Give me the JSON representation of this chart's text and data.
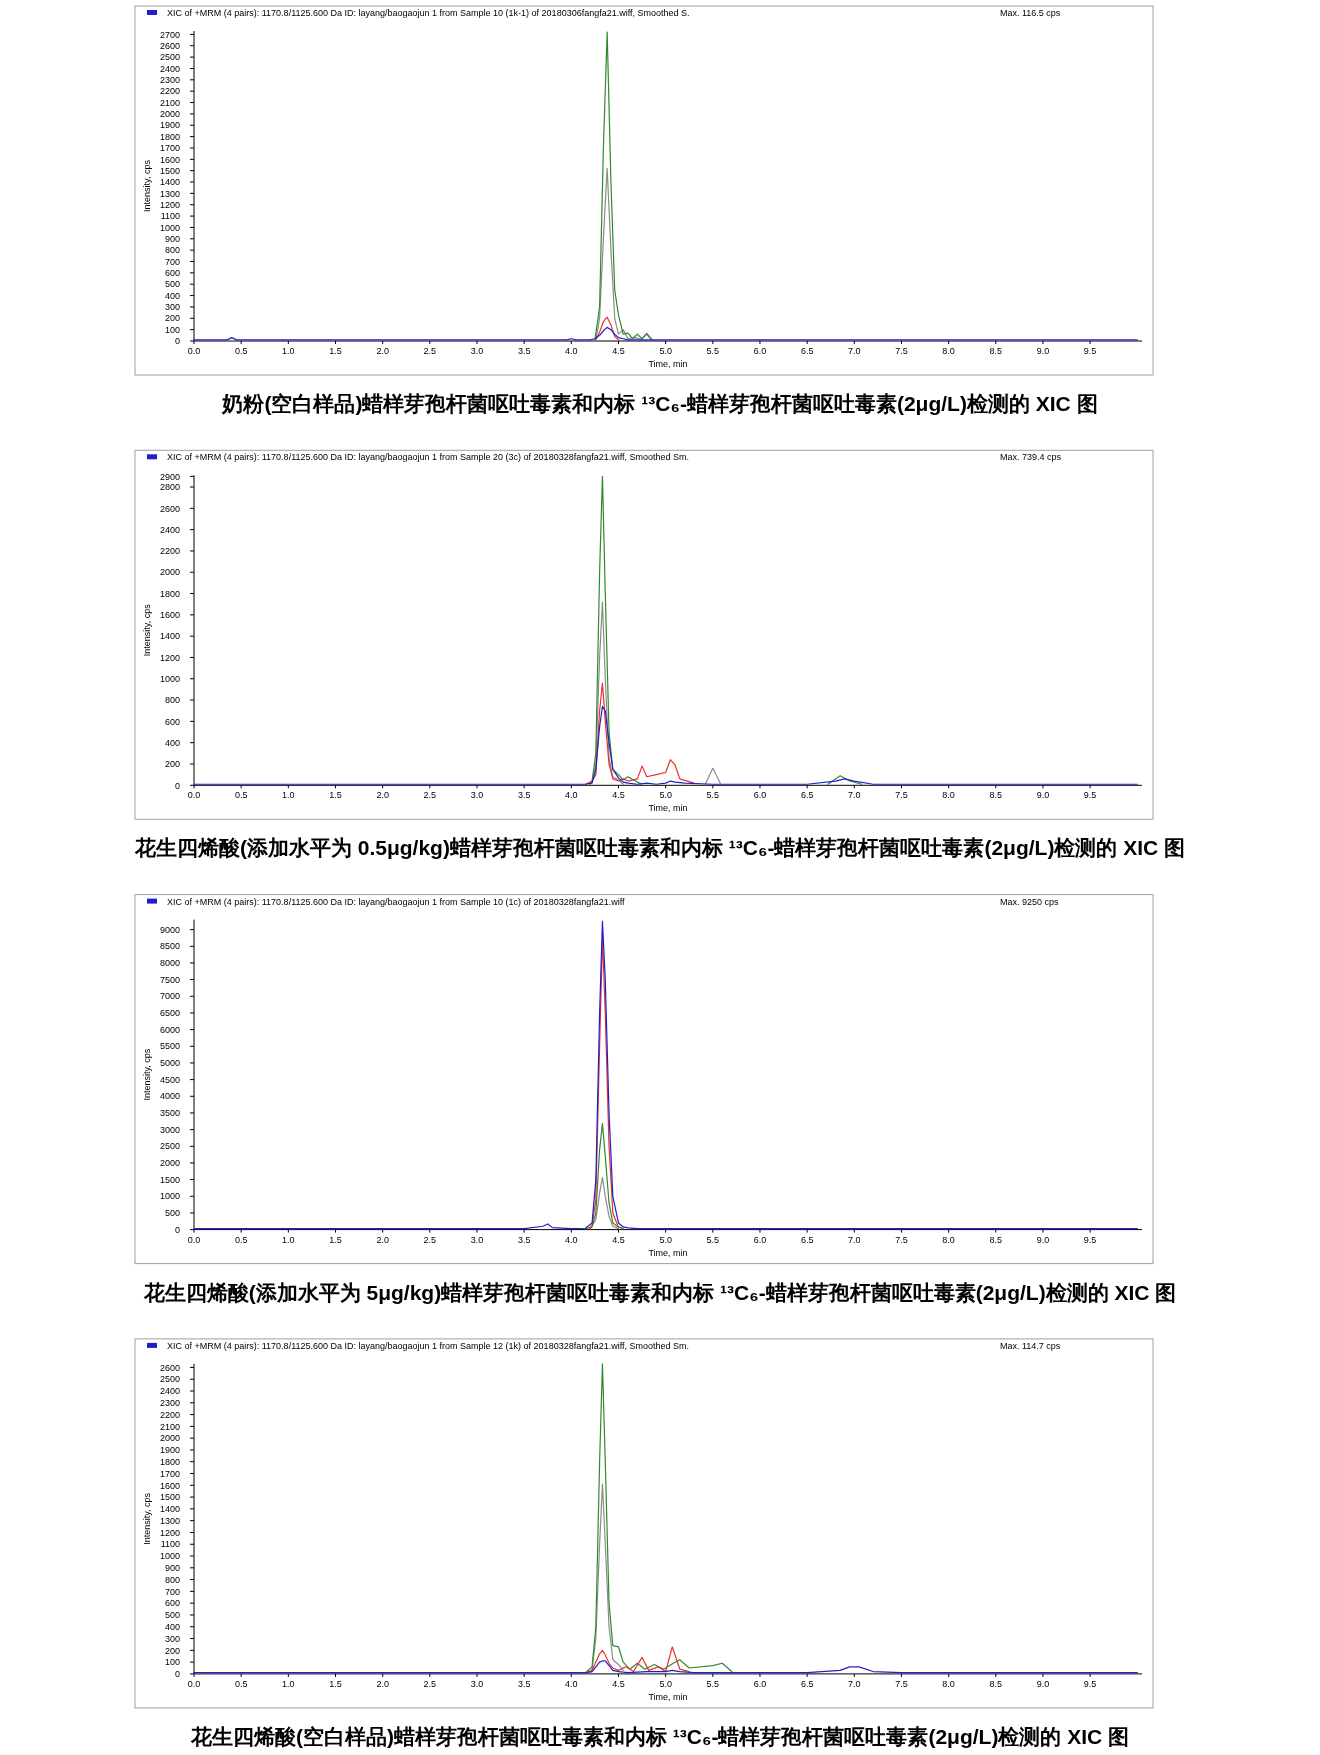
{
  "chart_data": [
    {
      "type": "line",
      "title": "奶粉(空白样品)蜡样芽孢杆菌呕吐毒素和内标 ¹³C₆-蜡样芽孢杆菌呕吐毒素(2μg/L)检测的 XIC 图",
      "xlabel": "Time, min",
      "ylabel": "Intensity, cps",
      "annotations": [
        "Max. 116.5 cps"
      ],
      "legend": "top left",
      "x": [
        0,
        0.2,
        0.35,
        0.4,
        0.45,
        0.6,
        1.0,
        1.5,
        2.0,
        2.5,
        3.0,
        3.5,
        3.95,
        4.0,
        4.05,
        4.2,
        4.25,
        4.3,
        4.34,
        4.38,
        4.42,
        4.46,
        4.5,
        4.55,
        4.6,
        4.7,
        5.0,
        5.5,
        6.0,
        6.5,
        7.0,
        7.5,
        8.0,
        8.5,
        9.0,
        9.5,
        10.0
      ],
      "xlim": [
        0,
        10.05
      ],
      "xticks": [
        {
          "value": 0,
          "label": "0.0"
        },
        {
          "value": 0.5,
          "label": "0.5"
        },
        {
          "value": 1,
          "label": "1.0"
        },
        {
          "value": 1.5,
          "label": "1.5"
        },
        {
          "value": 2,
          "label": "2.0"
        },
        {
          "value": 2.5,
          "label": "2.5"
        },
        {
          "value": 3,
          "label": "3.0"
        },
        {
          "value": 3.5,
          "label": "3.5"
        },
        {
          "value": 4,
          "label": "4.0"
        },
        {
          "value": 4.5,
          "label": "4.5"
        },
        {
          "value": 5,
          "label": "5.0"
        },
        {
          "value": 5.5,
          "label": "5.5"
        },
        {
          "value": 6,
          "label": "6.0"
        },
        {
          "value": 6.5,
          "label": "6.5"
        },
        {
          "value": 7,
          "label": "7.0"
        },
        {
          "value": 7.5,
          "label": "7.5"
        },
        {
          "value": 8,
          "label": "8.0"
        },
        {
          "value": 8.5,
          "label": "8.5"
        },
        {
          "value": 9,
          "label": "9.0"
        },
        {
          "value": 9.5,
          "label": "9.5"
        }
      ],
      "ylim": [
        0,
        2730
      ],
      "yticks": [
        0,
        100,
        200,
        300,
        400,
        500,
        600,
        700,
        800,
        900,
        1000,
        1100,
        1200,
        1300,
        1400,
        1500,
        1600,
        1700,
        1800,
        1900,
        2000,
        2100,
        2200,
        2300,
        2400,
        2500,
        2600,
        2700
      ],
      "series": [
        {
          "color": "#8c8c8c",
          "x": [
            4.26,
            4.3,
            4.34,
            4.38,
            4.42,
            4.46,
            4.5,
            4.55,
            4.6,
            4.68,
            4.74,
            4.8,
            4.86
          ],
          "values": [
            10,
            200,
            900,
            1520,
            800,
            200,
            60,
            100,
            20,
            30,
            15,
            70,
            10
          ]
        },
        {
          "color": "#2f8a2f",
          "x": [
            4.25,
            4.3,
            4.34,
            4.38,
            4.42,
            4.46,
            4.5,
            4.55,
            4.6,
            4.65,
            4.7,
            4.75,
            4.8,
            4.85
          ],
          "values": [
            10,
            300,
            1700,
            2720,
            1400,
            450,
            230,
            60,
            70,
            20,
            60,
            20,
            60,
            10
          ]
        },
        {
          "color": "#e8312a",
          "x": [
            4.26,
            4.3,
            4.34,
            4.38,
            4.42,
            4.46,
            4.5
          ],
          "values": [
            10,
            80,
            170,
            210,
            140,
            40,
            10
          ]
        },
        {
          "name": "XIC of +MRM (4 pairs): 1170.8/1125.600 Da ID: layang/baogaojun 1 from Sample 10 (1k-1) of 20180306fangfa21.wiff, Smoothed S.",
          "color": "#2020c8",
          "values": [
            10,
            10,
            10,
            30,
            10,
            10,
            10,
            10,
            10,
            10,
            10,
            10,
            10,
            20,
            10,
            10,
            20,
            50,
            90,
            120,
            100,
            60,
            30,
            20,
            10,
            10,
            10,
            10,
            10,
            10,
            10,
            10,
            10,
            10,
            10,
            10,
            10
          ]
        }
      ]
    },
    {
      "type": "line",
      "title": "花生四烯酸(添加水平为 0.5μg/kg)蜡样芽孢杆菌呕吐毒素和内标 ¹³C₆-蜡样芽孢杆菌呕吐毒素(2μg/L)检测的 XIC 图",
      "xlabel": "Time, min",
      "ylabel": "Intensity, cps",
      "annotations": [
        "Max. 739.4 cps"
      ],
      "legend": "top left",
      "x": [
        0,
        0.5,
        1.0,
        1.5,
        2.0,
        2.5,
        3.0,
        3.5,
        4.0,
        4.15,
        4.22,
        4.26,
        4.3,
        4.33,
        4.36,
        4.4,
        4.44,
        4.5,
        4.55,
        4.6,
        4.7,
        4.8,
        4.9,
        5.0,
        5.05,
        5.1,
        5.2,
        5.5,
        6.0,
        6.5,
        6.8,
        6.9,
        7.0,
        7.2,
        7.5,
        8.0,
        8.5,
        9.0,
        9.5,
        10.0
      ],
      "xlim": [
        0,
        10.05
      ],
      "xticks": [
        {
          "value": 0,
          "label": "0.0"
        },
        {
          "value": 0.5,
          "label": "0.5"
        },
        {
          "value": 1,
          "label": "1.0"
        },
        {
          "value": 1.5,
          "label": "1.5"
        },
        {
          "value": 2,
          "label": "2.0"
        },
        {
          "value": 2.5,
          "label": "2.5"
        },
        {
          "value": 3,
          "label": "3.0"
        },
        {
          "value": 3.5,
          "label": "3.5"
        },
        {
          "value": 4,
          "label": "4.0"
        },
        {
          "value": 4.5,
          "label": "4.5"
        },
        {
          "value": 5,
          "label": "5.0"
        },
        {
          "value": 5.5,
          "label": "5.5"
        },
        {
          "value": 6,
          "label": "6.0"
        },
        {
          "value": 6.5,
          "label": "6.5"
        },
        {
          "value": 7,
          "label": "7.0"
        },
        {
          "value": 7.5,
          "label": "7.5"
        },
        {
          "value": 8,
          "label": "8.0"
        },
        {
          "value": 8.5,
          "label": "8.5"
        },
        {
          "value": 9,
          "label": "9.0"
        },
        {
          "value": 9.5,
          "label": "9.5"
        }
      ],
      "ylim": [
        0,
        2910
      ],
      "yticks": [
        0,
        200,
        400,
        600,
        800,
        1000,
        1200,
        1400,
        1600,
        1800,
        2000,
        2200,
        2400,
        2600,
        2800,
        2900
      ],
      "series": [
        {
          "color": "#8c8c8c",
          "x": [
            4.2,
            4.22,
            4.26,
            4.3,
            4.33,
            4.36,
            4.4,
            4.44,
            4.5,
            4.55
          ],
          "values": [
            10,
            30,
            200,
            1200,
            1720,
            1000,
            250,
            80,
            50,
            10
          ]
        },
        {
          "color": "#8c8c8c",
          "x": [
            5.42,
            5.5,
            5.58
          ],
          "values": [
            10,
            160,
            20
          ]
        },
        {
          "color": "#2f8a2f",
          "x": [
            4.2,
            4.22,
            4.26,
            4.3,
            4.33,
            4.36,
            4.4,
            4.44,
            4.5,
            4.55,
            4.6,
            4.7,
            4.75
          ],
          "values": [
            10,
            40,
            300,
            2000,
            2900,
            1800,
            500,
            150,
            100,
            50,
            80,
            30,
            10
          ]
        },
        {
          "color": "#2f8a2f",
          "x": [
            6.72,
            6.85,
            6.95,
            7.08
          ],
          "values": [
            10,
            90,
            40,
            10
          ]
        },
        {
          "color": "#e8312a",
          "x": [
            4.15,
            4.22,
            4.26,
            4.3,
            4.33,
            4.36,
            4.4,
            4.44,
            4.5,
            4.55,
            4.6,
            4.7,
            4.75,
            4.8,
            4.9,
            5.0,
            5.05,
            5.1,
            5.15,
            5.3
          ],
          "values": [
            10,
            40,
            100,
            700,
            960,
            600,
            200,
            60,
            40,
            60,
            40,
            60,
            180,
            80,
            100,
            120,
            240,
            190,
            60,
            20
          ]
        },
        {
          "name": "XIC of +MRM (4 pairs): 1170.8/1125.600 Da ID: layang/baogaojun 1 from Sample 20 (3c) of 20180328fangfa21.wiff, Smoothed Sm.",
          "color": "#2020c8",
          "values": [
            10,
            10,
            10,
            10,
            10,
            10,
            10,
            10,
            10,
            10,
            20,
            150,
            550,
            740,
            700,
            400,
            150,
            70,
            30,
            20,
            10,
            20,
            10,
            20,
            40,
            30,
            20,
            10,
            10,
            10,
            40,
            60,
            40,
            10,
            10,
            10,
            10,
            10,
            10,
            10
          ]
        }
      ]
    },
    {
      "type": "line",
      "title": "花生四烯酸(添加水平为 5μg/kg)蜡样芽孢杆菌呕吐毒素和内标 ¹³C₆-蜡样芽孢杆菌呕吐毒素(2μg/L)检测的 XIC 图",
      "xlabel": "Time, min",
      "ylabel": "Intensity, cps",
      "annotations": [
        "Max. 9250 cps"
      ],
      "legend": "top left",
      "x": [
        0,
        0.5,
        1.0,
        1.5,
        2.0,
        2.5,
        3.0,
        3.5,
        3.7,
        3.75,
        3.8,
        4.0,
        4.15,
        4.22,
        4.26,
        4.3,
        4.33,
        4.36,
        4.4,
        4.44,
        4.5,
        4.55,
        4.6,
        4.7,
        5.0,
        5.5,
        6.0,
        6.5,
        7.0,
        7.5,
        8.0,
        8.5,
        9.0,
        9.5,
        10.0
      ],
      "xlim": [
        0,
        10.05
      ],
      "xticks": [
        {
          "value": 0,
          "label": "0.0"
        },
        {
          "value": 0.5,
          "label": "0.5"
        },
        {
          "value": 1,
          "label": "1.0"
        },
        {
          "value": 1.5,
          "label": "1.5"
        },
        {
          "value": 2,
          "label": "2.0"
        },
        {
          "value": 2.5,
          "label": "2.5"
        },
        {
          "value": 3,
          "label": "3.0"
        },
        {
          "value": 3.5,
          "label": "3.5"
        },
        {
          "value": 4,
          "label": "4.0"
        },
        {
          "value": 4.5,
          "label": "4.5"
        },
        {
          "value": 5,
          "label": "5.0"
        },
        {
          "value": 5.5,
          "label": "5.5"
        },
        {
          "value": 6,
          "label": "6.0"
        },
        {
          "value": 6.5,
          "label": "6.5"
        },
        {
          "value": 7,
          "label": "7.0"
        },
        {
          "value": 7.5,
          "label": "7.5"
        },
        {
          "value": 8,
          "label": "8.0"
        },
        {
          "value": 8.5,
          "label": "8.5"
        },
        {
          "value": 9,
          "label": "9.0"
        },
        {
          "value": 9.5,
          "label": "9.5"
        }
      ],
      "ylim": [
        0,
        9300
      ],
      "yticks": [
        0,
        500,
        1000,
        1500,
        2000,
        2500,
        3000,
        3500,
        4000,
        4500,
        5000,
        5500,
        6000,
        6500,
        7000,
        7500,
        8000,
        8500,
        9000
      ],
      "series": [
        {
          "color": "#8c8c8c",
          "x": [
            4.2,
            4.26,
            4.3,
            4.33,
            4.36,
            4.4,
            4.44,
            4.5
          ],
          "values": [
            30,
            300,
            1100,
            1560,
            1000,
            400,
            100,
            30
          ]
        },
        {
          "color": "#2f8a2f",
          "x": [
            4.15,
            4.22,
            4.26,
            4.3,
            4.33,
            4.36,
            4.4,
            4.44,
            4.5,
            4.55
          ],
          "values": [
            30,
            80,
            500,
            2400,
            3180,
            2200,
            800,
            200,
            80,
            30
          ]
        },
        {
          "color": "#e8312a",
          "x": [
            4.2,
            4.22,
            4.26,
            4.3,
            4.33,
            4.36,
            4.4,
            4.44,
            4.5
          ],
          "values": [
            30,
            120,
            900,
            5500,
            8740,
            6500,
            2500,
            500,
            60
          ]
        },
        {
          "name": "XIC of +MRM (4 pairs): 1170.8/1125.600 Da ID: layang/baogaojun 1 from Sample 10 (1c) of 20180328fangfa21.wiff",
          "color": "#2020c8",
          "values": [
            30,
            30,
            30,
            30,
            30,
            30,
            30,
            30,
            100,
            170,
            60,
            30,
            40,
            200,
            1500,
            6500,
            9250,
            7500,
            3500,
            1000,
            200,
            80,
            50,
            30,
            30,
            30,
            30,
            30,
            30,
            30,
            30,
            30,
            30,
            30,
            30
          ]
        }
      ]
    },
    {
      "type": "line",
      "title": "花生四烯酸(空白样品)蜡样芽孢杆菌呕吐毒素和内标 ¹³C₆-蜡样芽孢杆菌呕吐毒素(2μg/L)检测的 XIC 图",
      "xlabel": "Time, min",
      "ylabel": "Intensity, cps",
      "annotations": [
        "Max. 114.7 cps"
      ],
      "legend": "top left",
      "x": [
        0,
        0.5,
        1.0,
        1.5,
        2.0,
        2.5,
        3.0,
        3.5,
        4.0,
        4.15,
        4.22,
        4.26,
        4.3,
        4.33,
        4.36,
        4.4,
        4.44,
        4.5,
        4.6,
        4.8,
        5.0,
        5.07,
        5.15,
        5.3,
        5.5,
        6.0,
        6.5,
        6.85,
        6.95,
        7.05,
        7.2,
        7.5,
        8.0,
        8.5,
        9.0,
        9.5,
        10.0
      ],
      "xlim": [
        0,
        10.05
      ],
      "xticks": [
        {
          "value": 0,
          "label": "0.0"
        },
        {
          "value": 0.5,
          "label": "0.5"
        },
        {
          "value": 1,
          "label": "1.0"
        },
        {
          "value": 1.5,
          "label": "1.5"
        },
        {
          "value": 2,
          "label": "2.0"
        },
        {
          "value": 2.5,
          "label": "2.5"
        },
        {
          "value": 3,
          "label": "3.0"
        },
        {
          "value": 3.5,
          "label": "3.5"
        },
        {
          "value": 4,
          "label": "4.0"
        },
        {
          "value": 4.5,
          "label": "4.5"
        },
        {
          "value": 5,
          "label": "5.0"
        },
        {
          "value": 5.5,
          "label": "5.5"
        },
        {
          "value": 6,
          "label": "6.0"
        },
        {
          "value": 6.5,
          "label": "6.5"
        },
        {
          "value": 7,
          "label": "7.0"
        },
        {
          "value": 7.5,
          "label": "7.5"
        },
        {
          "value": 8,
          "label": "8.0"
        },
        {
          "value": 8.5,
          "label": "8.5"
        },
        {
          "value": 9,
          "label": "9.0"
        },
        {
          "value": 9.5,
          "label": "9.5"
        }
      ],
      "ylim": [
        0,
        2630
      ],
      "yticks": [
        0,
        100,
        200,
        300,
        400,
        500,
        600,
        700,
        800,
        900,
        1000,
        1100,
        1200,
        1300,
        1400,
        1500,
        1600,
        1700,
        1800,
        1900,
        2000,
        2100,
        2200,
        2300,
        2400,
        2500,
        2600
      ],
      "series": [
        {
          "color": "#8c8c8c",
          "x": [
            4.2,
            4.22,
            4.26,
            4.3,
            4.33,
            4.36,
            4.4,
            4.44,
            4.5,
            4.55
          ],
          "values": [
            10,
            40,
            300,
            1100,
            1610,
            1100,
            400,
            120,
            80,
            30
          ]
        },
        {
          "color": "#2f8a2f",
          "x": [
            4.15,
            4.22,
            4.26,
            4.3,
            4.33,
            4.36,
            4.4,
            4.44,
            4.5,
            4.55,
            4.62,
            4.7,
            4.78,
            4.88,
            4.98,
            5.08,
            5.15,
            5.25,
            5.5,
            5.6,
            5.7
          ],
          "values": [
            10,
            60,
            400,
            1800,
            2630,
            1800,
            600,
            240,
            230,
            100,
            40,
            90,
            40,
            80,
            40,
            90,
            120,
            50,
            70,
            90,
            20
          ]
        },
        {
          "color": "#e8312a",
          "x": [
            4.15,
            4.22,
            4.26,
            4.3,
            4.33,
            4.36,
            4.4,
            4.44,
            4.5,
            4.58,
            4.66,
            4.75,
            4.82,
            4.92,
            5.0,
            5.07,
            5.15,
            5.25
          ],
          "values": [
            10,
            30,
            100,
            170,
            200,
            160,
            90,
            50,
            30,
            60,
            20,
            140,
            30,
            60,
            20,
            230,
            40,
            20
          ]
        },
        {
          "name": "XIC of +MRM (4 pairs): 1170.8/1125.600 Da ID: layang/baogaojun 1 from Sample 12 (1k) of 20180328fangfa21.wiff, Smoothed Sm.",
          "color": "#2020c8",
          "values": [
            10,
            10,
            10,
            10,
            10,
            10,
            10,
            10,
            10,
            10,
            20,
            60,
            100,
            110,
            110,
            70,
            30,
            20,
            10,
            20,
            20,
            30,
            20,
            10,
            10,
            10,
            10,
            30,
            60,
            60,
            20,
            10,
            10,
            10,
            10,
            10,
            10
          ]
        }
      ]
    }
  ]
}
